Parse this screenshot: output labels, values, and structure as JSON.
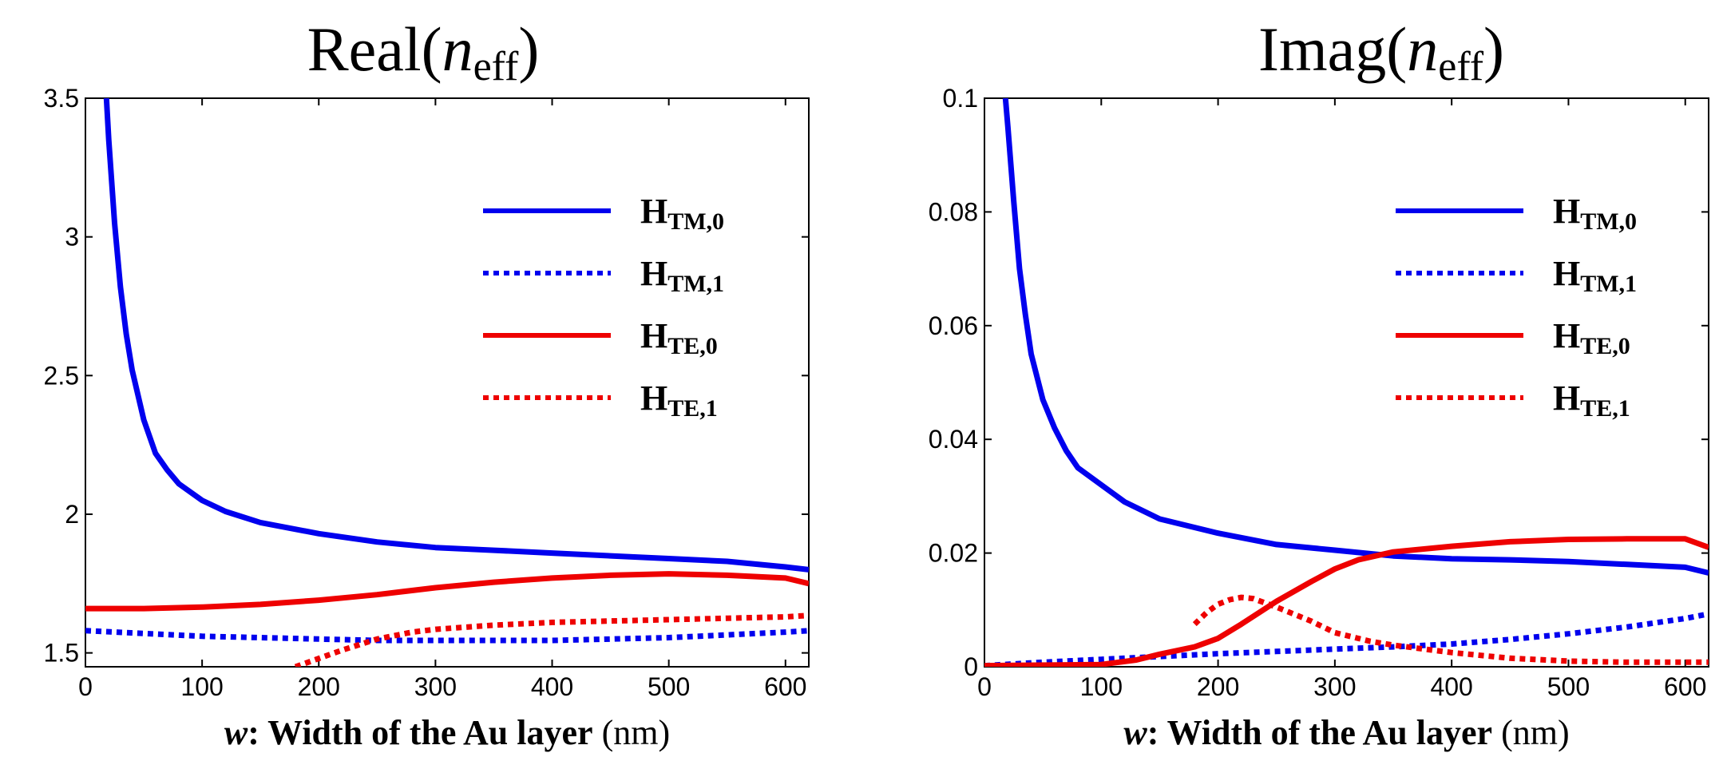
{
  "chart_data": [
    {
      "type": "line",
      "title": {
        "prefix": "Real(",
        "italic": "n",
        "subscript": "eff",
        "suffix": ")"
      },
      "xlabel": {
        "italic": "w",
        "bold": ": Width of the Au layer",
        "normal": " (nm)"
      },
      "ylabel": "",
      "xlim": [
        0,
        620
      ],
      "ylim": [
        1.45,
        3.5
      ],
      "xticks": [
        0,
        100,
        200,
        300,
        400,
        500,
        600
      ],
      "yticks": [
        1.5,
        2,
        2.5,
        3,
        3.5
      ],
      "ytick_labels": [
        "1.5",
        "2",
        "2.5",
        "3",
        "3.5"
      ],
      "grid": false,
      "legend_position": "top-right",
      "series": [
        {
          "name": "H_TM,0",
          "label_main": "H",
          "label_sub": "TM,0",
          "color": "#0000ee",
          "style": "solid",
          "x": [
            18,
            20,
            25,
            30,
            35,
            40,
            50,
            60,
            70,
            80,
            100,
            120,
            150,
            200,
            250,
            300,
            350,
            400,
            450,
            500,
            550,
            600,
            620
          ],
          "y": [
            3.5,
            3.35,
            3.05,
            2.82,
            2.65,
            2.52,
            2.34,
            2.22,
            2.16,
            2.11,
            2.05,
            2.01,
            1.97,
            1.93,
            1.9,
            1.88,
            1.87,
            1.86,
            1.85,
            1.84,
            1.83,
            1.81,
            1.8
          ]
        },
        {
          "name": "H_TM,1",
          "label_main": "H",
          "label_sub": "TM,1",
          "color": "#0000ee",
          "style": "dotted",
          "x": [
            0,
            50,
            100,
            150,
            200,
            250,
            300,
            350,
            400,
            450,
            500,
            550,
            600,
            620
          ],
          "y": [
            1.58,
            1.57,
            1.56,
            1.555,
            1.55,
            1.545,
            1.545,
            1.545,
            1.545,
            1.55,
            1.555,
            1.565,
            1.575,
            1.58
          ]
        },
        {
          "name": "H_TE,0",
          "label_main": "H",
          "label_sub": "TE,0",
          "color": "#ee0000",
          "style": "solid",
          "x": [
            0,
            50,
            100,
            150,
            200,
            250,
            300,
            350,
            400,
            450,
            500,
            550,
            600,
            620
          ],
          "y": [
            1.66,
            1.66,
            1.665,
            1.675,
            1.69,
            1.71,
            1.735,
            1.755,
            1.77,
            1.78,
            1.785,
            1.78,
            1.77,
            1.75
          ]
        },
        {
          "name": "H_TE,1",
          "label_main": "H",
          "label_sub": "TE,1",
          "color": "#ee0000",
          "style": "dotted",
          "x": [
            180,
            200,
            220,
            250,
            280,
            300,
            350,
            400,
            450,
            500,
            550,
            600,
            620
          ],
          "y": [
            1.45,
            1.48,
            1.51,
            1.55,
            1.575,
            1.585,
            1.6,
            1.61,
            1.615,
            1.62,
            1.625,
            1.63,
            1.635
          ]
        }
      ]
    },
    {
      "type": "line",
      "title": {
        "prefix": "Imag(",
        "italic": "n",
        "subscript": "eff",
        "suffix": ")"
      },
      "xlabel": {
        "italic": "w",
        "bold": ": Width of the Au layer",
        "normal": " (nm)"
      },
      "ylabel": "",
      "xlim": [
        0,
        620
      ],
      "ylim": [
        0,
        0.1
      ],
      "xticks": [
        0,
        100,
        200,
        300,
        400,
        500,
        600
      ],
      "yticks": [
        0,
        0.02,
        0.04,
        0.06,
        0.08,
        0.1
      ],
      "ytick_labels": [
        "0",
        "0.02",
        "0.04",
        "0.06",
        "0.08",
        "0.1"
      ],
      "grid": false,
      "legend_position": "top-right",
      "series": [
        {
          "name": "H_TM,0",
          "label_main": "H",
          "label_sub": "TM,0",
          "color": "#0000ee",
          "style": "solid",
          "x": [
            18,
            20,
            25,
            30,
            35,
            40,
            50,
            60,
            70,
            80,
            100,
            120,
            150,
            200,
            250,
            300,
            350,
            400,
            450,
            500,
            550,
            600,
            620
          ],
          "y": [
            0.1,
            0.095,
            0.082,
            0.07,
            0.062,
            0.055,
            0.047,
            0.042,
            0.038,
            0.035,
            0.032,
            0.029,
            0.026,
            0.0235,
            0.0215,
            0.0205,
            0.0195,
            0.019,
            0.0188,
            0.0185,
            0.018,
            0.0175,
            0.0165
          ]
        },
        {
          "name": "H_TM,1",
          "label_main": "H",
          "label_sub": "TM,1",
          "color": "#0000ee",
          "style": "dotted",
          "x": [
            0,
            50,
            100,
            150,
            200,
            250,
            300,
            350,
            400,
            450,
            500,
            550,
            600,
            620
          ],
          "y": [
            0.0002,
            0.0008,
            0.0013,
            0.0018,
            0.0023,
            0.0027,
            0.0031,
            0.0035,
            0.004,
            0.0048,
            0.0058,
            0.007,
            0.0085,
            0.0093
          ]
        },
        {
          "name": "H_TE,0",
          "label_main": "H",
          "label_sub": "TE,0",
          "color": "#ee0000",
          "style": "solid",
          "x": [
            0,
            100,
            130,
            150,
            180,
            200,
            220,
            250,
            280,
            300,
            320,
            350,
            400,
            450,
            500,
            550,
            600,
            620
          ],
          "y": [
            0.0002,
            0.0004,
            0.0012,
            0.0022,
            0.0035,
            0.005,
            0.0075,
            0.0115,
            0.015,
            0.0172,
            0.0188,
            0.0202,
            0.0212,
            0.022,
            0.0224,
            0.0225,
            0.0225,
            0.021
          ]
        },
        {
          "name": "H_TE,1",
          "label_main": "H",
          "label_sub": "TE,1",
          "color": "#ee0000",
          "style": "dotted",
          "x": [
            180,
            190,
            200,
            210,
            220,
            230,
            250,
            280,
            300,
            330,
            350,
            400,
            450,
            500,
            550,
            600,
            620
          ],
          "y": [
            0.0075,
            0.0095,
            0.011,
            0.0118,
            0.0122,
            0.012,
            0.0105,
            0.008,
            0.006,
            0.0045,
            0.0038,
            0.0025,
            0.0015,
            0.001,
            0.0008,
            0.0008,
            0.0008
          ]
        }
      ]
    }
  ]
}
